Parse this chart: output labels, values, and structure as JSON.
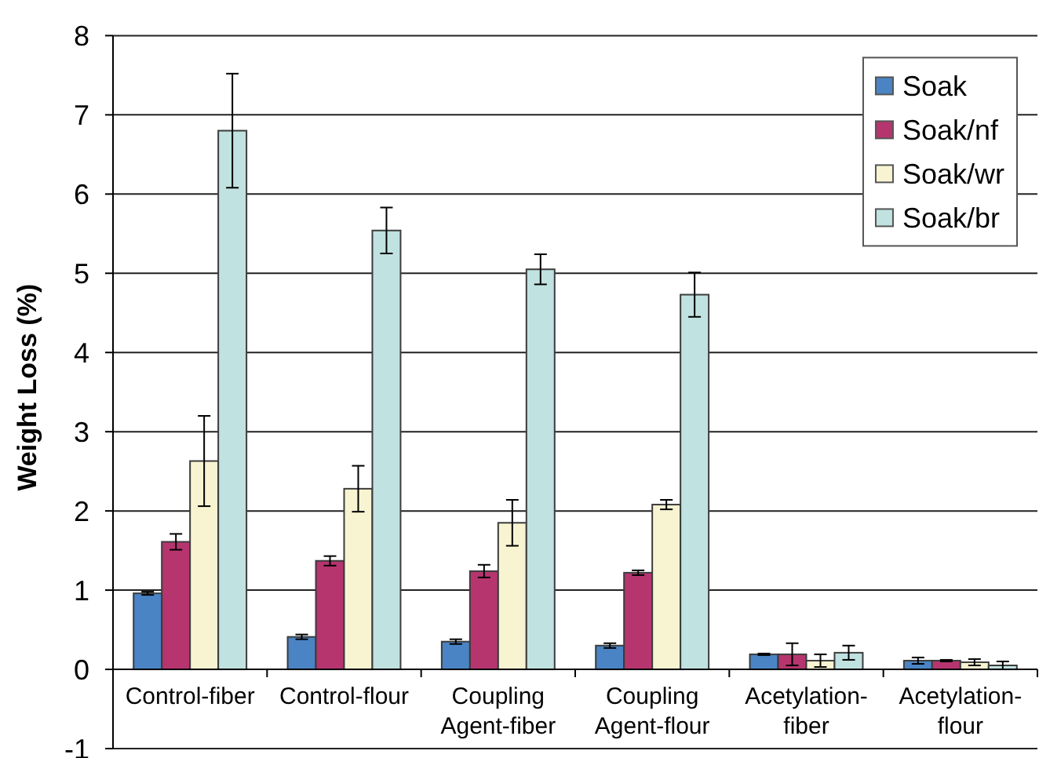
{
  "chart_data": {
    "type": "bar",
    "ylabel": "Weight Loss (%)",
    "categories": [
      "Control-fiber",
      "Control-flour",
      "Coupling Agent-fiber",
      "Coupling Agent-flour",
      "Acetylation-fiber",
      "Acetylation-flour"
    ],
    "series": [
      {
        "name": "Soak",
        "color": "#4a84c4",
        "values": [
          0.96,
          0.41,
          0.35,
          0.3,
          0.19,
          0.11
        ],
        "errors": [
          0.02,
          0.03,
          0.03,
          0.03,
          0.01,
          0.04
        ]
      },
      {
        "name": "Soak/nf",
        "color": "#b6356f",
        "values": [
          1.61,
          1.37,
          1.24,
          1.22,
          0.19,
          0.11
        ],
        "errors": [
          0.1,
          0.06,
          0.08,
          0.03,
          0.14,
          0.01
        ]
      },
      {
        "name": "Soak/wr",
        "color": "#f8f4d2",
        "values": [
          2.63,
          2.28,
          1.85,
          2.08,
          0.11,
          0.09
        ],
        "errors": [
          0.57,
          0.29,
          0.29,
          0.06,
          0.08,
          0.04
        ]
      },
      {
        "name": "Soak/br",
        "color": "#c0e2e0",
        "values": [
          6.8,
          5.54,
          5.05,
          4.73,
          0.21,
          0.05
        ],
        "errors": [
          0.72,
          0.29,
          0.19,
          0.28,
          0.09,
          0.05
        ]
      }
    ],
    "ylim": [
      -1,
      8
    ],
    "yticks": [
      -1,
      0,
      1,
      2,
      3,
      4,
      5,
      6,
      7,
      8
    ],
    "grid": "y",
    "legend": "top right"
  }
}
